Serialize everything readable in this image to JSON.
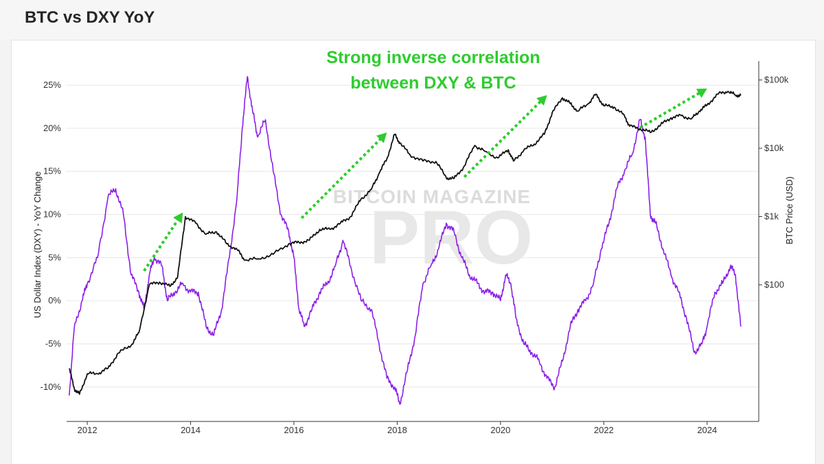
{
  "header": {
    "title": "BTC vs DXY YoY"
  },
  "annotation": {
    "line1": "Strong inverse correlation",
    "line2": "between DXY & BTC"
  },
  "watermark": {
    "line1": "BITCOIN MAGAZINE",
    "line2": "PRO"
  },
  "colors": {
    "dxy": "#8b1ee6",
    "btc": "#111111",
    "arrow": "#2ecc2e",
    "annotation": "#2ecc2e",
    "grid": "#e6e6e6"
  },
  "chart_data": {
    "type": "line",
    "title": "",
    "xlabel": "",
    "ylabel": "US Dollar Index (DXY) - YoY Change",
    "y2label": "BTC Price (USD)",
    "xlim": [
      2011.6,
      2025.0
    ],
    "ylim": [
      -14,
      27
    ],
    "y2_scale": "log",
    "y2lim": [
      1,
      150000
    ],
    "x_ticks": [
      2012,
      2014,
      2016,
      2018,
      2020,
      2022,
      2024
    ],
    "x_tick_labels": [
      "2012",
      "2014",
      "2016",
      "2018",
      "2020",
      "2022",
      "2024"
    ],
    "y_ticks": [
      -10,
      -5,
      0,
      5,
      10,
      15,
      20,
      25
    ],
    "y_tick_labels": [
      "-10%",
      "-5%",
      "0%",
      "5%",
      "10%",
      "15%",
      "20%",
      "25%"
    ],
    "y2_ticks": [
      100,
      1000,
      10000,
      100000
    ],
    "y2_tick_labels": [
      "$100",
      "$1k",
      "$10k",
      "$100k"
    ],
    "grid": true,
    "series": [
      {
        "name": "US Dollar Index (DXY) - YoY Change",
        "axis": "left",
        "x": [
          2011.65,
          2011.75,
          2011.9,
          2012.0,
          2012.2,
          2012.4,
          2012.55,
          2012.7,
          2012.85,
          2013.0,
          2013.1,
          2013.2,
          2013.3,
          2013.45,
          2013.55,
          2013.7,
          2013.85,
          2014.0,
          2014.15,
          2014.3,
          2014.45,
          2014.6,
          2014.75,
          2014.9,
          2015.0,
          2015.1,
          2015.2,
          2015.3,
          2015.45,
          2015.6,
          2015.75,
          2015.9,
          2016.0,
          2016.1,
          2016.2,
          2016.35,
          2016.5,
          2016.65,
          2016.8,
          2016.95,
          2017.1,
          2017.3,
          2017.5,
          2017.65,
          2017.8,
          2017.95,
          2018.05,
          2018.2,
          2018.35,
          2018.5,
          2018.65,
          2018.8,
          2018.95,
          2019.1,
          2019.25,
          2019.4,
          2019.55,
          2019.7,
          2019.85,
          2020.0,
          2020.1,
          2020.2,
          2020.3,
          2020.45,
          2020.6,
          2020.75,
          2020.9,
          2021.05,
          2021.2,
          2021.35,
          2021.5,
          2021.65,
          2021.8,
          2021.95,
          2022.1,
          2022.25,
          2022.4,
          2022.55,
          2022.7,
          2022.8,
          2022.9,
          2023.0,
          2023.15,
          2023.3,
          2023.45,
          2023.6,
          2023.75,
          2023.9,
          2024.0,
          2024.15,
          2024.3,
          2024.45,
          2024.55,
          2024.65
        ],
        "values": [
          -11,
          -3,
          0,
          2,
          5,
          12,
          13,
          10,
          3,
          1,
          -1,
          3,
          5,
          4,
          0,
          1,
          2,
          1,
          1,
          -3,
          -4,
          -1,
          5,
          12,
          20,
          26,
          22,
          19,
          21,
          15,
          10,
          8,
          5,
          -1,
          -3,
          -1,
          1,
          2,
          4,
          7,
          4,
          0,
          -1,
          -5,
          -9,
          -10,
          -12,
          -8,
          -4,
          2,
          4,
          6,
          9,
          8,
          5,
          3,
          2,
          1,
          1,
          0,
          3,
          2,
          -2,
          -5,
          -6,
          -7,
          -9,
          -10,
          -7,
          -3,
          -1,
          0,
          2,
          6,
          9,
          13,
          15,
          17,
          21,
          19,
          10,
          9,
          6,
          3,
          1,
          -2,
          -6,
          -5,
          -3,
          1,
          2,
          4,
          3,
          -3
        ]
      },
      {
        "name": "BTC Price (USD)",
        "axis": "right",
        "x": [
          2011.65,
          2011.75,
          2011.85,
          2012.0,
          2012.2,
          2012.4,
          2012.6,
          2012.85,
          2013.0,
          2013.2,
          2013.4,
          2013.6,
          2013.75,
          2013.9,
          2014.1,
          2014.3,
          2014.5,
          2014.7,
          2014.9,
          2015.05,
          2015.3,
          2015.6,
          2015.9,
          2016.1,
          2016.3,
          2016.5,
          2016.7,
          2016.9,
          2017.1,
          2017.3,
          2017.5,
          2017.65,
          2017.8,
          2017.95,
          2018.05,
          2018.25,
          2018.5,
          2018.75,
          2018.95,
          2019.1,
          2019.3,
          2019.5,
          2019.7,
          2019.95,
          2020.15,
          2020.25,
          2020.45,
          2020.65,
          2020.85,
          2021.0,
          2021.2,
          2021.35,
          2021.5,
          2021.7,
          2021.85,
          2022.0,
          2022.2,
          2022.4,
          2022.5,
          2022.7,
          2022.9,
          2023.1,
          2023.3,
          2023.5,
          2023.7,
          2023.85,
          2024.0,
          2024.2,
          2024.4,
          2024.55,
          2024.65
        ],
        "values": [
          6,
          3,
          2.5,
          5,
          5,
          6,
          10,
          13,
          20,
          100,
          110,
          95,
          130,
          1000,
          800,
          550,
          600,
          400,
          330,
          230,
          240,
          280,
          400,
          420,
          450,
          650,
          650,
          800,
          1000,
          1800,
          2500,
          4300,
          7000,
          16000,
          12000,
          8000,
          6500,
          6400,
          3700,
          3600,
          5500,
          11000,
          9000,
          7200,
          9500,
          6500,
          9300,
          11500,
          16000,
          33000,
          55000,
          45000,
          35000,
          45000,
          62000,
          42000,
          40000,
          30000,
          21000,
          19500,
          17000,
          22000,
          28000,
          30000,
          27000,
          35000,
          43000,
          62000,
          68000,
          60000,
          59000
        ]
      }
    ],
    "arrows": [
      {
        "from": [
          2013.1,
          160
        ],
        "to": [
          2013.85,
          1150
        ]
      },
      {
        "from": [
          2016.15,
          950
        ],
        "to": [
          2017.8,
          17000
        ]
      },
      {
        "from": [
          2019.3,
          3800
        ],
        "to": [
          2020.9,
          60000
        ]
      },
      {
        "from": [
          2022.7,
          20000
        ],
        "to": [
          2024.0,
          75000
        ]
      }
    ]
  }
}
